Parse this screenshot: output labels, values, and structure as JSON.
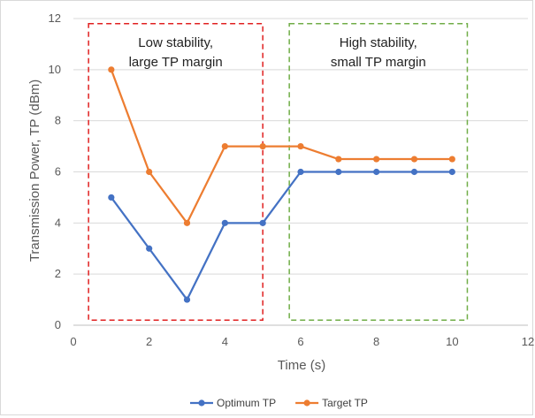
{
  "chart_data": {
    "type": "line",
    "xlabel": "Time (s)",
    "ylabel": "Transmission Power, TP (dBm)",
    "xlim": [
      0,
      12
    ],
    "ylim": [
      0,
      12
    ],
    "xticks": [
      0,
      2,
      4,
      6,
      8,
      10,
      12
    ],
    "yticks": [
      0,
      2,
      4,
      6,
      8,
      10,
      12
    ],
    "grid": "horizontal",
    "legend_position": "bottom",
    "x": [
      1,
      2,
      3,
      4,
      5,
      6,
      7,
      8,
      9,
      10
    ],
    "series": [
      {
        "name": "Optimum TP",
        "color": "#4472c4",
        "values": [
          5,
          3,
          1,
          4,
          4,
          6,
          6,
          6,
          6,
          6
        ]
      },
      {
        "name": "Target TP",
        "color": "#ed7d31",
        "values": [
          10,
          6,
          4,
          7,
          7,
          7,
          6.5,
          6.5,
          6.5,
          6.5
        ]
      }
    ],
    "regions": [
      {
        "x_range": [
          0.4,
          5
        ],
        "y_range": [
          0.2,
          11.8
        ],
        "color": "#e02020",
        "lines": [
          "Low stability,",
          "large TP margin"
        ]
      },
      {
        "x_range": [
          5.7,
          10.4
        ],
        "y_range": [
          0.2,
          11.8
        ],
        "color": "#70ad47",
        "lines": [
          "High stability,",
          "small TP margin"
        ]
      }
    ]
  }
}
